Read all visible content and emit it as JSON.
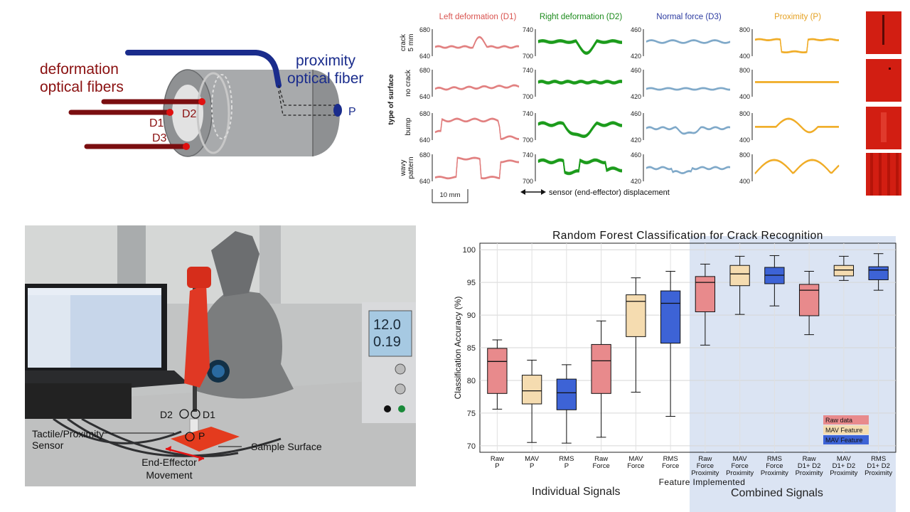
{
  "sensor_diagram": {
    "deformation_label": "deformation\noptical fibers",
    "proximity_label": "proximity\noptical fiber",
    "d1": "D1",
    "d2": "D2",
    "d3": "D3",
    "p": "P"
  },
  "signal_panel": {
    "columns": [
      "Left deformation (D1)",
      "Right deformation (D2)",
      "Normal force (D3)",
      "Proximity (P)"
    ],
    "column_colors": [
      "#d9534f",
      "#1a8a1a",
      "#2b3aa0",
      "#e5a020"
    ],
    "trace_colors": [
      "#e07b7b",
      "#1a9a1a",
      "#7aa5c7",
      "#f0aa20"
    ],
    "rows": [
      "crack\n5 mm",
      "no crack",
      "bump",
      "wavy\npattern"
    ],
    "ylabel": "type of surface",
    "yticks": [
      [
        "680",
        "640"
      ],
      [
        "740",
        "700"
      ],
      [
        "460",
        "420"
      ],
      [
        "800",
        "400"
      ]
    ],
    "scalebar": "10 mm",
    "xlabel": "sensor (end-effector) displacement"
  },
  "photo": {
    "d2": "D2",
    "d1": "D1",
    "p": "P",
    "sensor_label": "Tactile/Proximity\nSensor",
    "surface_label": "Sample Surface",
    "movement_label": "End-Effector\nMovement",
    "psu_v": "12.0",
    "psu_a": "0.19"
  },
  "chart_data": {
    "type": "box",
    "title": "Random Forest Classification for Crack Recognition",
    "xlabel": "Feature Implemented",
    "ylabel": "Classification Accuracy (%)",
    "ylim": [
      69,
      101
    ],
    "yticks": [
      70,
      75,
      80,
      85,
      90,
      95,
      100
    ],
    "grid": true,
    "legend_position": "bottom-right",
    "legend": [
      {
        "name": "Raw data",
        "color": "#e88a8c"
      },
      {
        "name": "MAV Feature",
        "color": "#f5dcb0"
      },
      {
        "name": "MAV Feature",
        "color": "#3d63d6"
      }
    ],
    "categories": [
      "Raw\nP",
      "MAV\nP",
      "RMS\nP",
      "Raw\nForce",
      "MAV\nForce",
      "RMS\nForce",
      "Raw\nForce\nProximity",
      "MAV\nForce\nProximity",
      "RMS\nForce\nProximity",
      "Raw\nD1+ D2\nProximity",
      "MAV\nD1+ D2\nProximity",
      "RMS\nD1+ D2\nProximity"
    ],
    "box_colors": [
      "#e88a8c",
      "#f5dcb0",
      "#3d63d6",
      "#e88a8c",
      "#f5dcb0",
      "#3d63d6",
      "#e88a8c",
      "#f5dcb0",
      "#3d63d6",
      "#e88a8c",
      "#f5dcb0",
      "#3d63d6"
    ],
    "boxes": [
      {
        "min": 75.6,
        "q1": 78.0,
        "median": 82.9,
        "q3": 84.9,
        "max": 86.2
      },
      {
        "min": 70.5,
        "q1": 76.4,
        "median": 78.4,
        "q3": 80.8,
        "max": 83.1
      },
      {
        "min": 70.4,
        "q1": 75.5,
        "median": 78.1,
        "q3": 80.2,
        "max": 82.4
      },
      {
        "min": 71.3,
        "q1": 78.0,
        "median": 83.0,
        "q3": 85.5,
        "max": 89.1
      },
      {
        "min": 78.2,
        "q1": 86.7,
        "median": 92.1,
        "q3": 93.1,
        "max": 95.7
      },
      {
        "min": 74.5,
        "q1": 85.7,
        "median": 91.8,
        "q3": 93.7,
        "max": 96.7
      },
      {
        "min": 85.4,
        "q1": 90.5,
        "median": 95.0,
        "q3": 95.9,
        "max": 97.8
      },
      {
        "min": 90.1,
        "q1": 94.5,
        "median": 96.3,
        "q3": 97.6,
        "max": 99.0
      },
      {
        "min": 91.4,
        "q1": 94.8,
        "median": 96.1,
        "q3": 97.3,
        "max": 99.1
      },
      {
        "min": 87.0,
        "q1": 89.9,
        "median": 93.8,
        "q3": 94.7,
        "max": 96.7
      },
      {
        "min": 95.3,
        "q1": 96.0,
        "median": 96.9,
        "q3": 97.6,
        "max": 99.0
      },
      {
        "min": 93.8,
        "q1": 95.4,
        "median": 96.9,
        "q3": 97.4,
        "max": 99.4
      }
    ]
  },
  "captions": {
    "individual": "Individual Signals",
    "combined": "Combined Signals"
  }
}
